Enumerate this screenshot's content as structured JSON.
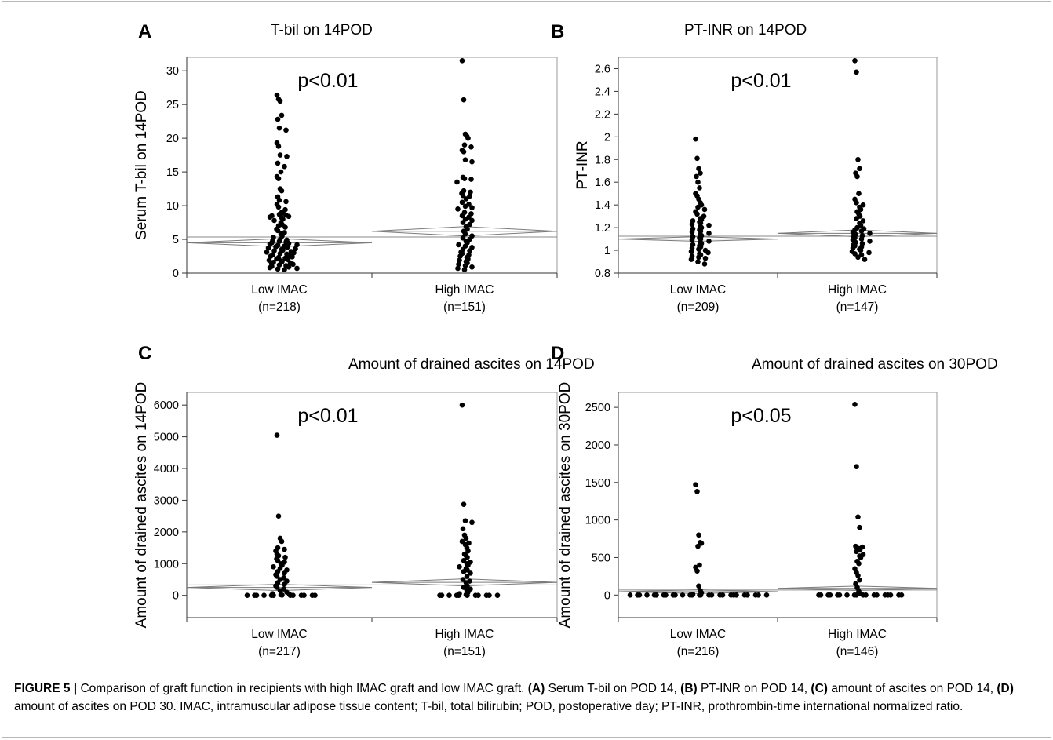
{
  "caption": {
    "figure_label": "FIGURE 5 |",
    "text": [
      {
        "t": " Comparison of graft function in recipients with high IMAC graft and low IMAC graft. ",
        "b": false
      },
      {
        "t": "(A)",
        "b": true
      },
      {
        "t": " Serum T-bil on POD 14, ",
        "b": false
      },
      {
        "t": "(B)",
        "b": true
      },
      {
        "t": " PT-INR on POD 14, ",
        "b": false
      },
      {
        "t": "(C)",
        "b": true
      },
      {
        "t": " amount of ascites on POD 14, ",
        "b": false
      },
      {
        "t": "(D)",
        "b": true
      },
      {
        "t": " amount of ascites on POD 30. IMAC, intramuscular adipose tissue content; T-bil, total bilirubin; POD, postoperative day; PT-INR, prothrombin-time international normalized ratio.",
        "b": false
      }
    ]
  },
  "chart_data": [
    {
      "panel": "A",
      "type": "scatter",
      "title": "T-bil on 14POD",
      "ylabel": "Serum T-bil on 14POD",
      "ylim": [
        0,
        32
      ],
      "yticks": [
        0,
        5,
        10,
        15,
        20,
        25,
        30
      ],
      "ytick_labels": [
        "0",
        "5",
        "10",
        "15",
        "20",
        "25",
        "30"
      ],
      "annotation": "p<0.01",
      "groups": [
        {
          "label": "Low IMAC",
          "n_label": "(n=218)",
          "mean": 4.5,
          "ci": [
            3.9,
            5.1
          ],
          "values": [
            26.4,
            25.8,
            25.5,
            23.4,
            22.8,
            21.5,
            21.2,
            19.3,
            18.8,
            17.5,
            17.3,
            16.3,
            15.8,
            15.0,
            14.3,
            14.0,
            12.5,
            12.2,
            11.3,
            10.8,
            10.6,
            10.2,
            9.8,
            9.4,
            9.0,
            8.9,
            8.7,
            8.6,
            8.5,
            8.4,
            8.3,
            8.2,
            8.0,
            7.8,
            7.5,
            7.2,
            7.0,
            6.8,
            6.5,
            6.3,
            6.0,
            5.8,
            5.5,
            5.3,
            5.0,
            4.9,
            4.8,
            4.7,
            4.6,
            4.5,
            4.4,
            4.3,
            4.2,
            4.1,
            4.0,
            3.9,
            3.8,
            3.7,
            3.6,
            3.5,
            3.4,
            3.3,
            3.2,
            3.1,
            3.0,
            2.9,
            2.8,
            2.7,
            2.6,
            2.5,
            2.4,
            2.3,
            2.2,
            2.1,
            2.0,
            1.9,
            1.8,
            1.7,
            1.6,
            1.5,
            1.4,
            1.3,
            1.2,
            1.1,
            1.0,
            0.9,
            0.8,
            0.7,
            0.6,
            0.5
          ]
        },
        {
          "label": "High IMAC",
          "n_label": "(n=151)",
          "mean": 6.2,
          "ci": [
            5.5,
            6.9
          ],
          "values": [
            31.5,
            25.7,
            20.6,
            20.3,
            20.0,
            19.0,
            18.7,
            18.2,
            18.0,
            16.8,
            16.5,
            14.2,
            14.0,
            13.9,
            13.5,
            12.2,
            12.0,
            11.8,
            11.5,
            11.4,
            11.0,
            10.5,
            10.2,
            9.9,
            9.7,
            9.5,
            9.0,
            8.8,
            8.5,
            8.3,
            8.0,
            7.8,
            7.5,
            7.2,
            6.9,
            6.5,
            6.2,
            5.8,
            5.5,
            5.2,
            5.0,
            4.7,
            4.5,
            4.2,
            4.0,
            3.8,
            3.5,
            3.3,
            3.1,
            2.9,
            2.7,
            2.5,
            2.3,
            2.1,
            1.9,
            1.7,
            1.5,
            1.3,
            1.1,
            0.9,
            0.7,
            0.5
          ]
        }
      ]
    },
    {
      "panel": "B",
      "type": "scatter",
      "title": "PT-INR on 14POD",
      "ylabel": "PT-INR",
      "ylim": [
        0.8,
        2.7
      ],
      "yticks": [
        0.8,
        1.0,
        1.2,
        1.4,
        1.6,
        1.8,
        2.0,
        2.2,
        2.4,
        2.6
      ],
      "ytick_labels": [
        "0.8",
        "1",
        "1.2",
        "1.4",
        "1.6",
        "1.8",
        "2",
        "2.2",
        "2.4",
        "2.6"
      ],
      "annotation": "p<0.01",
      "groups": [
        {
          "label": "Low IMAC",
          "n_label": "(n=209)",
          "mean": 1.1,
          "ci": [
            1.08,
            1.12
          ],
          "values": [
            1.98,
            1.81,
            1.72,
            1.68,
            1.65,
            1.6,
            1.55,
            1.5,
            1.48,
            1.45,
            1.42,
            1.4,
            1.38,
            1.36,
            1.34,
            1.32,
            1.3,
            1.28,
            1.27,
            1.26,
            1.25,
            1.24,
            1.23,
            1.22,
            1.21,
            1.2,
            1.19,
            1.18,
            1.17,
            1.16,
            1.15,
            1.14,
            1.13,
            1.12,
            1.11,
            1.1,
            1.09,
            1.08,
            1.07,
            1.06,
            1.05,
            1.04,
            1.03,
            1.02,
            1.01,
            1.0,
            0.99,
            0.98,
            0.97,
            0.96,
            0.95,
            0.94,
            0.93,
            0.92,
            0.9,
            0.88
          ]
        },
        {
          "label": "High IMAC",
          "n_label": "(n=147)",
          "mean": 1.15,
          "ci": [
            1.12,
            1.18
          ],
          "values": [
            2.67,
            2.57,
            1.8,
            1.72,
            1.68,
            1.65,
            1.5,
            1.45,
            1.42,
            1.4,
            1.38,
            1.36,
            1.34,
            1.32,
            1.3,
            1.28,
            1.26,
            1.24,
            1.22,
            1.2,
            1.19,
            1.18,
            1.17,
            1.16,
            1.15,
            1.14,
            1.13,
            1.12,
            1.11,
            1.1,
            1.09,
            1.08,
            1.07,
            1.06,
            1.05,
            1.04,
            1.03,
            1.02,
            1.01,
            1.0,
            0.99,
            0.98,
            0.97,
            0.96,
            0.94,
            0.92
          ]
        }
      ]
    },
    {
      "panel": "C",
      "type": "scatter",
      "title": "Amount of drained ascites on 14POD",
      "ylabel": "Amount of drained ascites on 14POD",
      "ylim": [
        -700,
        6400
      ],
      "yticks": [
        0,
        1000,
        2000,
        3000,
        4000,
        5000,
        6000
      ],
      "ytick_labels": [
        "0",
        "1000",
        "2000",
        "3000",
        "4000",
        "5000",
        "6000"
      ],
      "annotation": "p<0.01",
      "groups": [
        {
          "label": "Low IMAC",
          "n_label": "(n=217)",
          "mean": 250,
          "ci": [
            150,
            350
          ],
          "values": [
            5050,
            2500,
            1800,
            1700,
            1500,
            1450,
            1400,
            1300,
            1250,
            1200,
            1150,
            1100,
            1050,
            1000,
            950,
            900,
            850,
            800,
            750,
            700,
            650,
            600,
            550,
            500,
            450,
            400,
            350,
            300,
            250,
            200,
            150,
            100,
            50,
            30,
            20,
            10,
            0,
            0,
            0,
            0,
            0,
            0,
            0,
            0,
            0,
            0,
            0,
            0
          ]
        },
        {
          "label": "High IMAC",
          "n_label": "(n=151)",
          "mean": 410,
          "ci": [
            300,
            520
          ],
          "values": [
            6000,
            2870,
            2350,
            2300,
            2100,
            1900,
            1800,
            1700,
            1650,
            1600,
            1500,
            1400,
            1300,
            1250,
            1200,
            1100,
            1050,
            1000,
            950,
            900,
            850,
            800,
            750,
            700,
            600,
            500,
            450,
            400,
            300,
            250,
            200,
            150,
            100,
            50,
            20,
            0,
            0,
            0,
            0,
            0,
            0,
            0,
            0,
            0,
            0,
            0
          ]
        }
      ]
    },
    {
      "panel": "D",
      "type": "scatter",
      "title": "Amount of drained ascites on 30POD",
      "ylabel": "Amount of drained ascites on 30POD",
      "ylim": [
        -300,
        2700
      ],
      "yticks": [
        0,
        500,
        1000,
        1500,
        2000,
        2500
      ],
      "ytick_labels": [
        "0",
        "500",
        "1000",
        "1500",
        "2000",
        "2500"
      ],
      "annotation": "p<0.05",
      "groups": [
        {
          "label": "Low IMAC",
          "n_label": "(n=216)",
          "mean": 45,
          "ci": [
            20,
            70
          ],
          "values": [
            1470,
            1380,
            800,
            700,
            690,
            650,
            400,
            370,
            320,
            120,
            60,
            30,
            10,
            0,
            0,
            0,
            0,
            0,
            0,
            0,
            0,
            0,
            0,
            0,
            0,
            0,
            0,
            0,
            0,
            0,
            0,
            0,
            0,
            0,
            0,
            0,
            0,
            0,
            0,
            0
          ]
        },
        {
          "label": "High IMAC",
          "n_label": "(n=146)",
          "mean": 90,
          "ci": [
            60,
            120
          ],
          "values": [
            2540,
            1710,
            1040,
            900,
            650,
            640,
            620,
            600,
            580,
            540,
            520,
            500,
            450,
            420,
            350,
            300,
            260,
            200,
            150,
            100,
            50,
            20,
            0,
            0,
            0,
            0,
            0,
            0,
            0,
            0,
            0,
            0,
            0,
            0,
            0,
            0,
            0,
            0,
            0,
            0
          ]
        }
      ]
    }
  ]
}
